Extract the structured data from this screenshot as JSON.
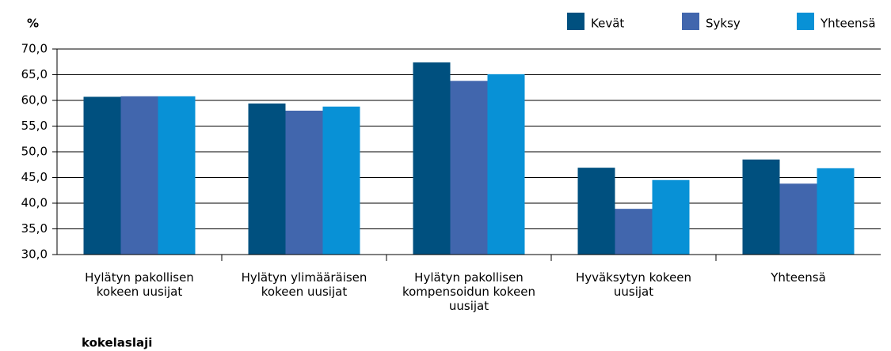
{
  "chart_data": {
    "type": "bar",
    "y_label": "%",
    "x_label": "kokelaslaji",
    "categories": [
      "Hylätyn pakollisen kokeen uusijat",
      "Hylätyn ylimääräisen kokeen uusijat",
      "Hylätyn pakollisen kompensoidun kokeen uusijat",
      "Hyväksytyn kokeen uusijat",
      "Yhteensä"
    ],
    "series": [
      {
        "name": "Kevät",
        "color": "#00507f",
        "values": [
          60.7,
          59.4,
          67.4,
          46.9,
          48.5
        ]
      },
      {
        "name": "Syksy",
        "color": "#4166ad",
        "values": [
          60.8,
          58.0,
          63.8,
          38.9,
          43.8
        ]
      },
      {
        "name": "Yhteensä",
        "color": "#0891d6",
        "values": [
          60.8,
          58.8,
          65.1,
          44.5,
          46.8
        ]
      }
    ],
    "ylim": [
      30,
      70
    ],
    "yticks": [
      {
        "value": 30,
        "label": "30,0"
      },
      {
        "value": 35,
        "label": "35,0"
      },
      {
        "value": 40,
        "label": "40,0"
      },
      {
        "value": 45,
        "label": "45,0"
      },
      {
        "value": 50,
        "label": "50,0"
      },
      {
        "value": 55,
        "label": "55,0"
      },
      {
        "value": 60,
        "label": "60,0"
      },
      {
        "value": 65,
        "label": "65,0"
      },
      {
        "value": 70,
        "label": "70,0"
      }
    ],
    "grid": true,
    "legend": "top-right"
  }
}
